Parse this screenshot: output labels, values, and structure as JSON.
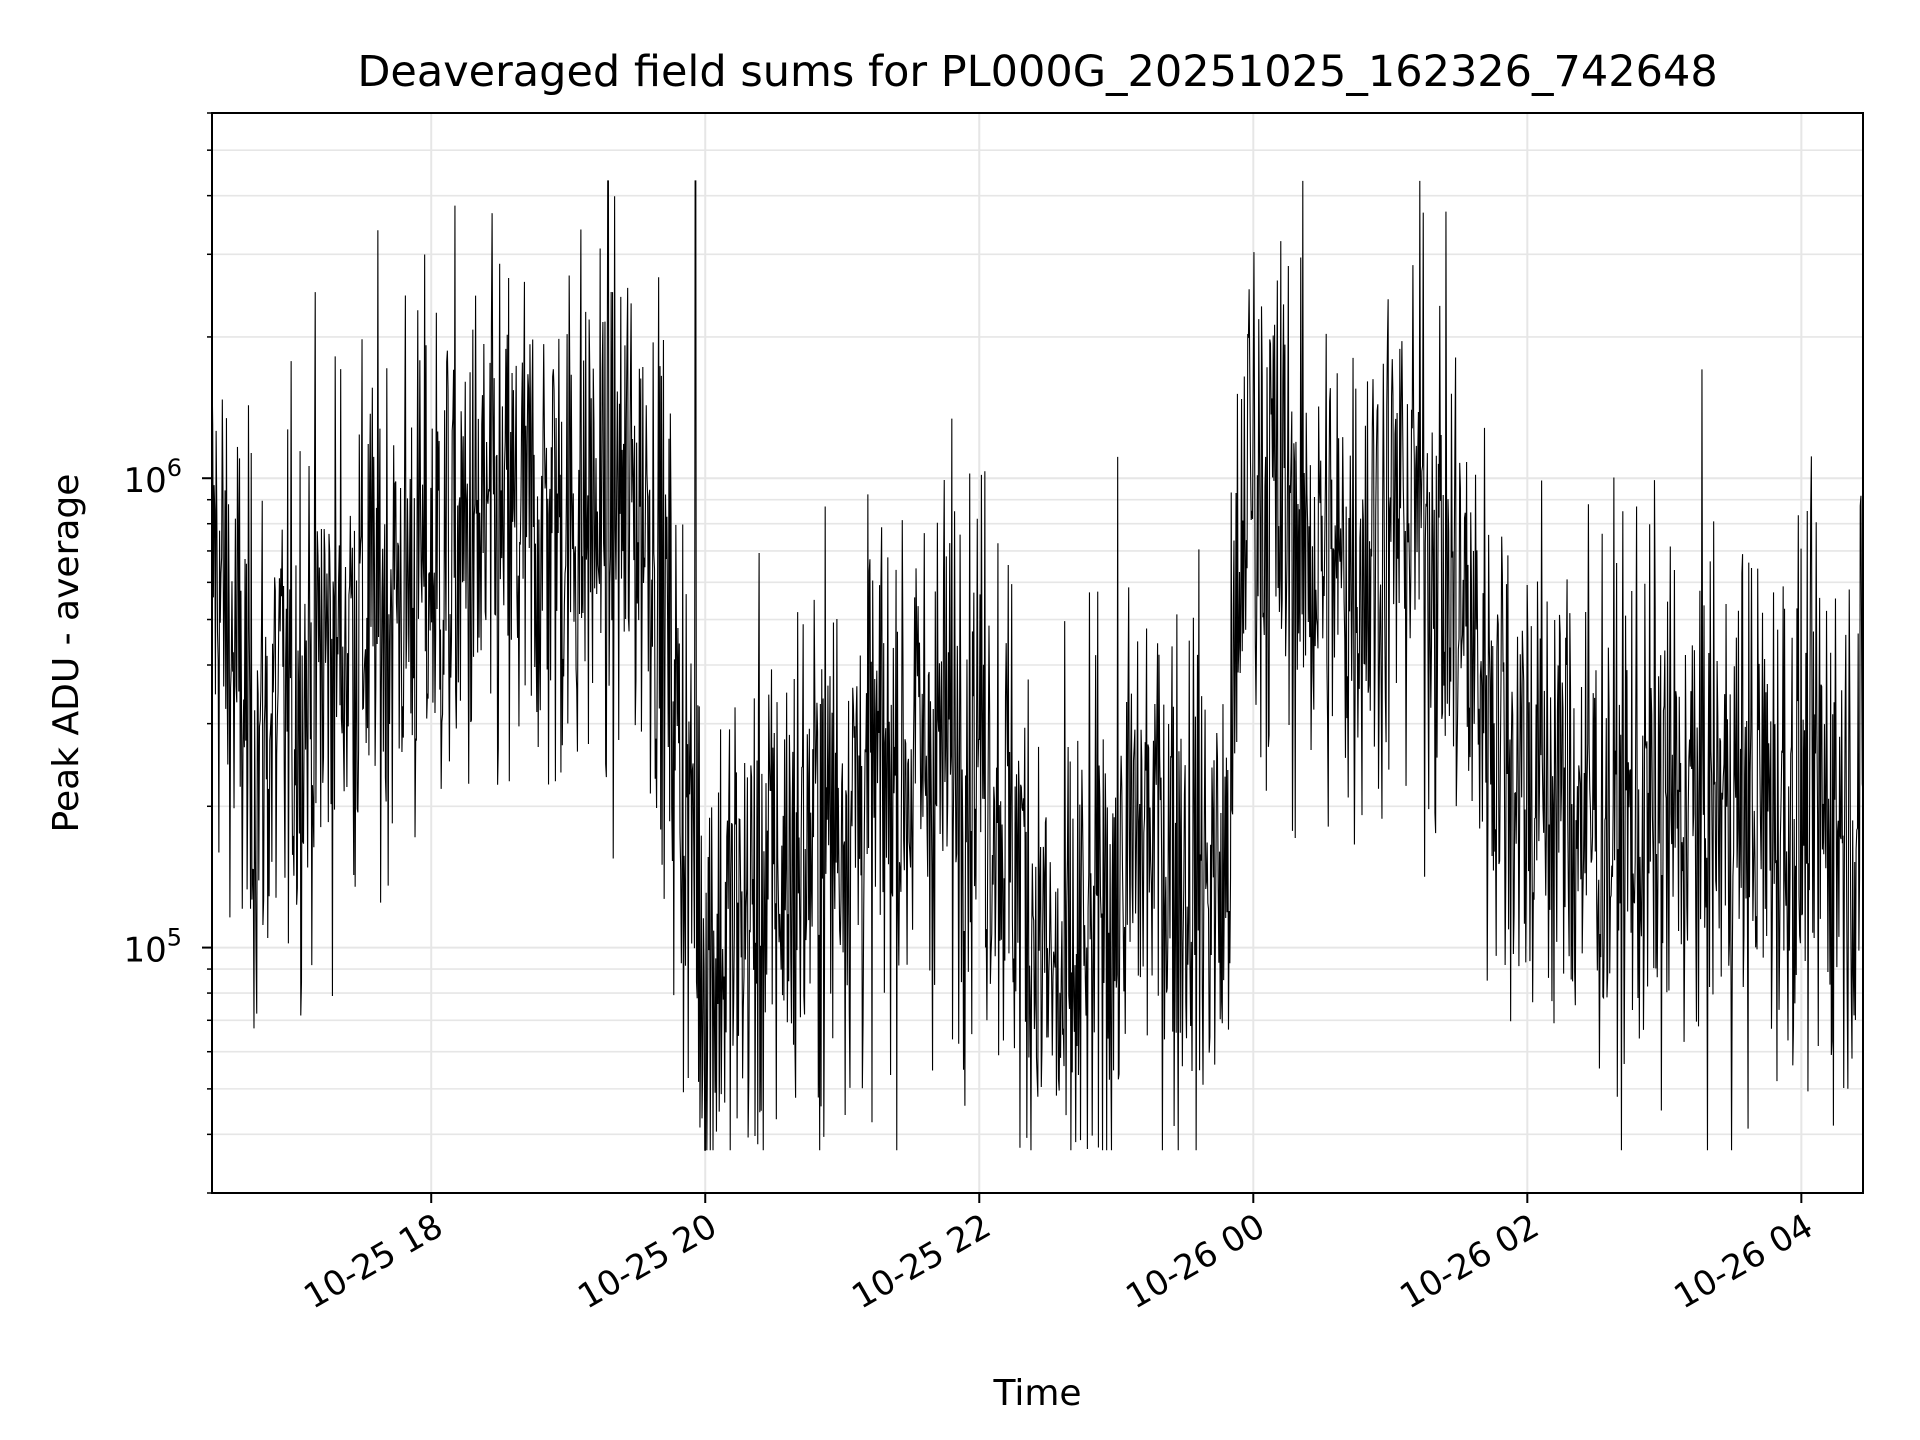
{
  "chart_data": {
    "type": "line",
    "title": "Deaveraged field sums for PL000G_20251025_162326_742648",
    "xlabel": "Time",
    "ylabel": "Peak ADU - average",
    "y_scale": "log",
    "ylim": [
      30000,
      6000000
    ],
    "x_range_hours": [
      -1.6,
      10.45
    ],
    "grid": true,
    "line_color": "#000000",
    "x_ticks": [
      {
        "hours": 0,
        "label": "10-25 18"
      },
      {
        "hours": 2,
        "label": "10-25 20"
      },
      {
        "hours": 4,
        "label": "10-25 22"
      },
      {
        "hours": 6,
        "label": "10-26 00"
      },
      {
        "hours": 8,
        "label": "10-26 02"
      },
      {
        "hours": 10,
        "label": "10-26 04"
      }
    ],
    "y_major_ticks": [
      {
        "value": 100000,
        "base": "10",
        "exp": "5"
      },
      {
        "value": 1000000,
        "base": "10",
        "exp": "6"
      }
    ],
    "series_profile": {
      "name": "deaveraged field sum",
      "segment_hours": [
        -1.6,
        -1.3,
        -0.7,
        0.0,
        0.9,
        1.6,
        2.0,
        3.0,
        4.0,
        4.6,
        5.2,
        5.8,
        5.95,
        6.6,
        7.2,
        7.9,
        8.6,
        9.4,
        10.45
      ],
      "median_by_segment": [
        700000,
        250000,
        450000,
        650000,
        800000,
        900000,
        90000,
        200000,
        300000,
        70000,
        180000,
        130000,
        1100000,
        600000,
        900000,
        250000,
        180000,
        200000,
        200000
      ],
      "min_value": 37000,
      "max_value": 4300000,
      "spike_hours": 1.93,
      "points": 2400
    }
  }
}
